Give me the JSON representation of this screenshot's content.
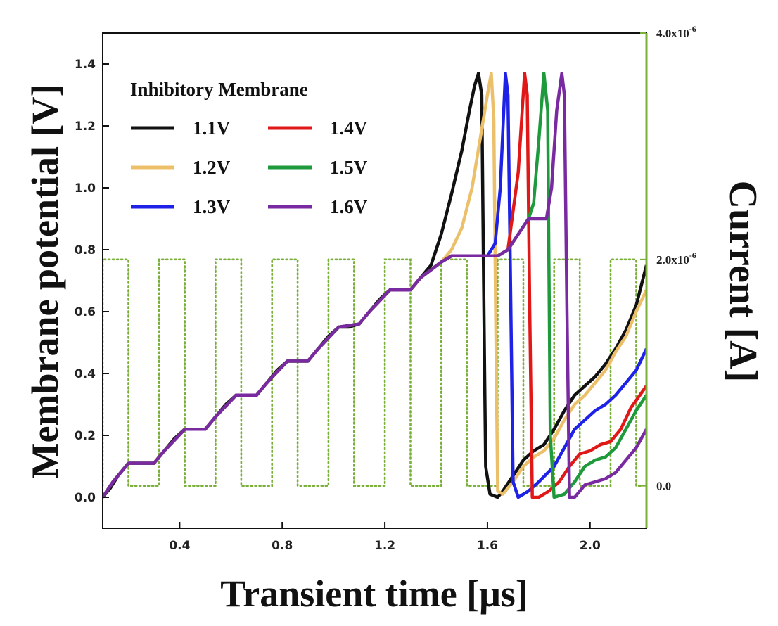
{
  "chart_data": {
    "type": "line",
    "xlabel": "Transient time [μs]",
    "ylabel": "Membrane potential [V]",
    "y2label": "Current [A]",
    "xlim": [
      0.1,
      2.22
    ],
    "ylim": [
      -0.1,
      1.5
    ],
    "y2lim": [
      -3.75e-07,
      4e-06
    ],
    "x_ticks": [
      "0.4",
      "0.8",
      "1.2",
      "1.6",
      "2.0"
    ],
    "y_ticks": [
      "0.0",
      "0.2",
      "0.4",
      "0.6",
      "0.8",
      "1.0",
      "1.2",
      "1.4"
    ],
    "y2_ticks": [
      {
        "value": 0,
        "base": "0.0",
        "exp": ""
      },
      {
        "value": 2e-06,
        "base": "2.0x10",
        "exp": "-6"
      },
      {
        "value": 4e-06,
        "base": "4.0x10",
        "exp": "-6"
      }
    ],
    "legend": {
      "title": "Inhibitory Membrane",
      "position": "top-left"
    },
    "input_current": {
      "color": "#7ab03a",
      "style": "dotted",
      "axis": "right",
      "low": 0,
      "high": 2e-06,
      "period": 0.22,
      "first_high_start": 0.1,
      "high_duration": 0.1,
      "end": 2.2
    },
    "series": [
      {
        "name": "1.1V",
        "color": "#111111",
        "x": [
          0.1,
          0.13,
          0.16,
          0.2,
          0.24,
          0.3,
          0.34,
          0.38,
          0.42,
          0.46,
          0.5,
          0.54,
          0.58,
          0.62,
          0.66,
          0.7,
          0.74,
          0.78,
          0.82,
          0.86,
          0.9,
          0.94,
          0.98,
          1.02,
          1.06,
          1.1,
          1.14,
          1.18,
          1.22,
          1.26,
          1.3,
          1.34,
          1.38,
          1.42,
          1.46,
          1.5,
          1.53,
          1.55,
          1.565,
          1.578,
          1.585,
          1.593,
          1.61,
          1.64,
          1.66,
          1.7,
          1.74,
          1.78,
          1.82,
          1.86,
          1.9,
          1.94,
          1.98,
          2.02,
          2.06,
          2.1,
          2.14,
          2.18,
          2.22
        ],
        "y": [
          0.0,
          0.03,
          0.07,
          0.11,
          0.11,
          0.11,
          0.15,
          0.19,
          0.22,
          0.22,
          0.22,
          0.26,
          0.3,
          0.33,
          0.33,
          0.33,
          0.37,
          0.41,
          0.44,
          0.44,
          0.44,
          0.48,
          0.52,
          0.55,
          0.55,
          0.56,
          0.6,
          0.64,
          0.67,
          0.67,
          0.67,
          0.71,
          0.75,
          0.85,
          0.98,
          1.12,
          1.25,
          1.33,
          1.37,
          1.3,
          0.7,
          0.1,
          0.01,
          0.0,
          0.02,
          0.07,
          0.12,
          0.15,
          0.17,
          0.22,
          0.28,
          0.33,
          0.36,
          0.39,
          0.43,
          0.48,
          0.54,
          0.62,
          0.75
        ]
      },
      {
        "name": "1.2V",
        "color": "#ecc06a",
        "x": [
          0.1,
          0.14,
          0.2,
          0.3,
          0.34,
          0.42,
          0.5,
          0.54,
          0.62,
          0.7,
          0.74,
          0.82,
          0.9,
          0.94,
          1.02,
          1.1,
          1.14,
          1.22,
          1.3,
          1.34,
          1.42,
          1.46,
          1.5,
          1.54,
          1.57,
          1.6,
          1.615,
          1.625,
          1.632,
          1.64,
          1.66,
          1.7,
          1.74,
          1.78,
          1.82,
          1.86,
          1.9,
          1.94,
          1.98,
          2.02,
          2.06,
          2.1,
          2.14,
          2.18,
          2.22
        ],
        "y": [
          0.0,
          0.05,
          0.11,
          0.11,
          0.15,
          0.22,
          0.22,
          0.26,
          0.33,
          0.33,
          0.37,
          0.44,
          0.44,
          0.48,
          0.55,
          0.56,
          0.6,
          0.67,
          0.67,
          0.71,
          0.76,
          0.8,
          0.87,
          1.0,
          1.15,
          1.3,
          1.37,
          1.22,
          0.6,
          0.02,
          0.01,
          0.05,
          0.1,
          0.13,
          0.15,
          0.19,
          0.25,
          0.3,
          0.33,
          0.37,
          0.41,
          0.47,
          0.52,
          0.6,
          0.67
        ]
      },
      {
        "name": "1.3V",
        "color": "#1e22e6",
        "x": [
          0.1,
          0.14,
          0.2,
          0.3,
          0.34,
          0.42,
          0.5,
          0.54,
          0.62,
          0.7,
          0.74,
          0.82,
          0.9,
          0.94,
          1.02,
          1.1,
          1.14,
          1.22,
          1.3,
          1.34,
          1.42,
          1.46,
          1.5,
          1.54,
          1.58,
          1.6,
          1.63,
          1.65,
          1.67,
          1.68,
          1.69,
          1.7,
          1.72,
          1.76,
          1.8,
          1.86,
          1.9,
          1.94,
          1.98,
          2.02,
          2.06,
          2.1,
          2.14,
          2.18,
          2.22
        ],
        "y": [
          0.0,
          0.05,
          0.11,
          0.11,
          0.15,
          0.22,
          0.22,
          0.26,
          0.33,
          0.33,
          0.37,
          0.44,
          0.44,
          0.48,
          0.55,
          0.56,
          0.6,
          0.67,
          0.67,
          0.71,
          0.76,
          0.78,
          0.78,
          0.78,
          0.78,
          0.78,
          0.82,
          1.0,
          1.37,
          1.3,
          0.7,
          0.05,
          0.0,
          0.02,
          0.05,
          0.1,
          0.16,
          0.22,
          0.25,
          0.28,
          0.3,
          0.33,
          0.37,
          0.41,
          0.48
        ]
      },
      {
        "name": "1.4V",
        "color": "#e01818",
        "x": [
          0.1,
          0.14,
          0.2,
          0.3,
          0.34,
          0.42,
          0.5,
          0.54,
          0.62,
          0.7,
          0.74,
          0.82,
          0.9,
          0.94,
          1.02,
          1.1,
          1.14,
          1.22,
          1.3,
          1.34,
          1.42,
          1.46,
          1.5,
          1.55,
          1.6,
          1.64,
          1.68,
          1.72,
          1.745,
          1.755,
          1.765,
          1.775,
          1.8,
          1.84,
          1.88,
          1.92,
          1.96,
          2.0,
          2.04,
          2.08,
          2.12,
          2.16,
          2.22
        ],
        "y": [
          0.0,
          0.05,
          0.11,
          0.11,
          0.15,
          0.22,
          0.22,
          0.26,
          0.33,
          0.33,
          0.37,
          0.44,
          0.44,
          0.48,
          0.55,
          0.56,
          0.6,
          0.67,
          0.67,
          0.71,
          0.76,
          0.78,
          0.78,
          0.78,
          0.78,
          0.78,
          0.8,
          1.05,
          1.37,
          1.3,
          0.6,
          0.0,
          0.0,
          0.02,
          0.05,
          0.1,
          0.14,
          0.15,
          0.17,
          0.18,
          0.22,
          0.29,
          0.36
        ]
      },
      {
        "name": "1.5V",
        "color": "#1e9a3c",
        "x": [
          0.1,
          0.14,
          0.2,
          0.3,
          0.34,
          0.42,
          0.5,
          0.54,
          0.62,
          0.7,
          0.74,
          0.82,
          0.9,
          0.94,
          1.02,
          1.1,
          1.14,
          1.22,
          1.3,
          1.34,
          1.42,
          1.46,
          1.5,
          1.55,
          1.6,
          1.64,
          1.68,
          1.72,
          1.76,
          1.78,
          1.8,
          1.82,
          1.835,
          1.845,
          1.86,
          1.9,
          1.94,
          1.98,
          2.02,
          2.06,
          2.1,
          2.14,
          2.18,
          2.22
        ],
        "y": [
          0.0,
          0.05,
          0.11,
          0.11,
          0.15,
          0.22,
          0.22,
          0.26,
          0.33,
          0.33,
          0.37,
          0.44,
          0.44,
          0.48,
          0.55,
          0.56,
          0.6,
          0.67,
          0.67,
          0.71,
          0.76,
          0.78,
          0.78,
          0.78,
          0.78,
          0.78,
          0.8,
          0.85,
          0.9,
          0.95,
          1.15,
          1.37,
          1.25,
          0.2,
          0.0,
          0.01,
          0.05,
          0.1,
          0.12,
          0.13,
          0.16,
          0.22,
          0.28,
          0.33
        ]
      },
      {
        "name": "1.6V",
        "color": "#7a2aa0",
        "x": [
          0.1,
          0.14,
          0.2,
          0.3,
          0.34,
          0.42,
          0.5,
          0.54,
          0.62,
          0.7,
          0.74,
          0.82,
          0.9,
          0.94,
          1.02,
          1.1,
          1.14,
          1.22,
          1.3,
          1.34,
          1.42,
          1.46,
          1.5,
          1.55,
          1.6,
          1.64,
          1.68,
          1.72,
          1.76,
          1.8,
          1.83,
          1.85,
          1.87,
          1.89,
          1.9,
          1.91,
          1.92,
          1.94,
          1.98,
          2.02,
          2.06,
          2.1,
          2.14,
          2.18,
          2.22
        ],
        "y": [
          0.0,
          0.05,
          0.11,
          0.11,
          0.15,
          0.22,
          0.22,
          0.26,
          0.33,
          0.33,
          0.37,
          0.44,
          0.44,
          0.48,
          0.55,
          0.56,
          0.6,
          0.67,
          0.67,
          0.71,
          0.76,
          0.78,
          0.78,
          0.78,
          0.78,
          0.78,
          0.8,
          0.85,
          0.9,
          0.9,
          0.9,
          1.0,
          1.25,
          1.37,
          1.3,
          0.6,
          0.0,
          0.0,
          0.04,
          0.05,
          0.06,
          0.08,
          0.12,
          0.16,
          0.22
        ]
      }
    ]
  }
}
